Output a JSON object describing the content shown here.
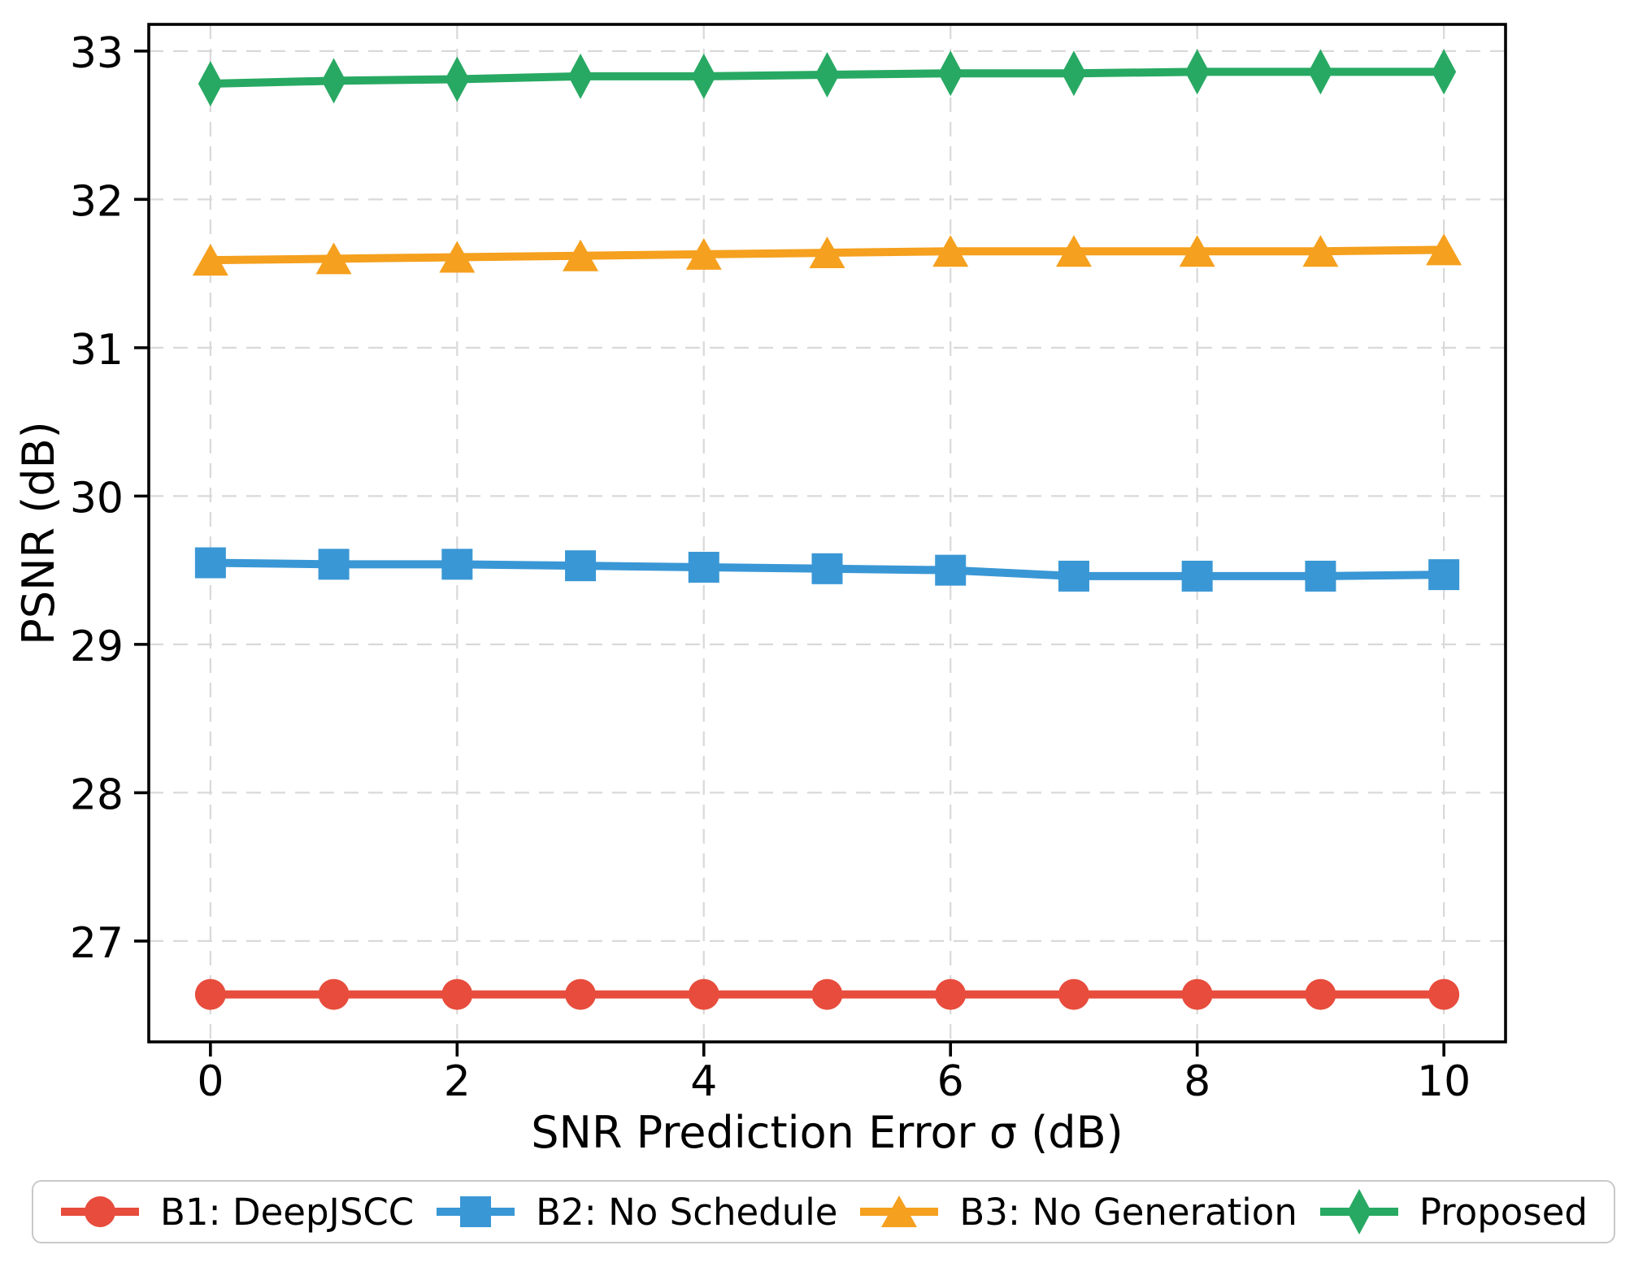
{
  "chart_data": {
    "type": "line",
    "title": "",
    "xlabel": "SNR Prediction Error σ (dB)",
    "ylabel": "PSNR (dB)",
    "x": [
      0,
      1,
      2,
      3,
      4,
      5,
      6,
      7,
      8,
      9,
      10
    ],
    "x_ticks": [
      0,
      2,
      4,
      6,
      8,
      10
    ],
    "y_ticks": [
      27,
      28,
      29,
      30,
      31,
      32,
      33
    ],
    "xlim": [
      -0.5,
      10.5
    ],
    "ylim": [
      26.32,
      33.18
    ],
    "grid": "dashed",
    "legend_position": "bottom",
    "series": [
      {
        "name": "B1: DeepJSCC",
        "color": "#e74c3c",
        "marker": "circle",
        "values": [
          26.64,
          26.64,
          26.64,
          26.64,
          26.64,
          26.64,
          26.64,
          26.64,
          26.64,
          26.64,
          26.64
        ]
      },
      {
        "name": "B2: No Schedule",
        "color": "#3a97d5",
        "marker": "square",
        "values": [
          29.55,
          29.54,
          29.54,
          29.53,
          29.52,
          29.51,
          29.5,
          29.46,
          29.46,
          29.46,
          29.47
        ]
      },
      {
        "name": "B3: No Generation",
        "color": "#f5a01e",
        "marker": "triangle",
        "values": [
          31.59,
          31.6,
          31.61,
          31.62,
          31.63,
          31.64,
          31.65,
          31.65,
          31.65,
          31.65,
          31.66
        ]
      },
      {
        "name": "Proposed",
        "color": "#28a963",
        "marker": "diamond",
        "values": [
          32.78,
          32.8,
          32.81,
          32.83,
          32.83,
          32.84,
          32.85,
          32.85,
          32.86,
          32.86,
          32.86
        ]
      }
    ],
    "style": {
      "grid_color": "#d9d9d9",
      "spine_color": "#000000",
      "background": "#ffffff"
    }
  }
}
